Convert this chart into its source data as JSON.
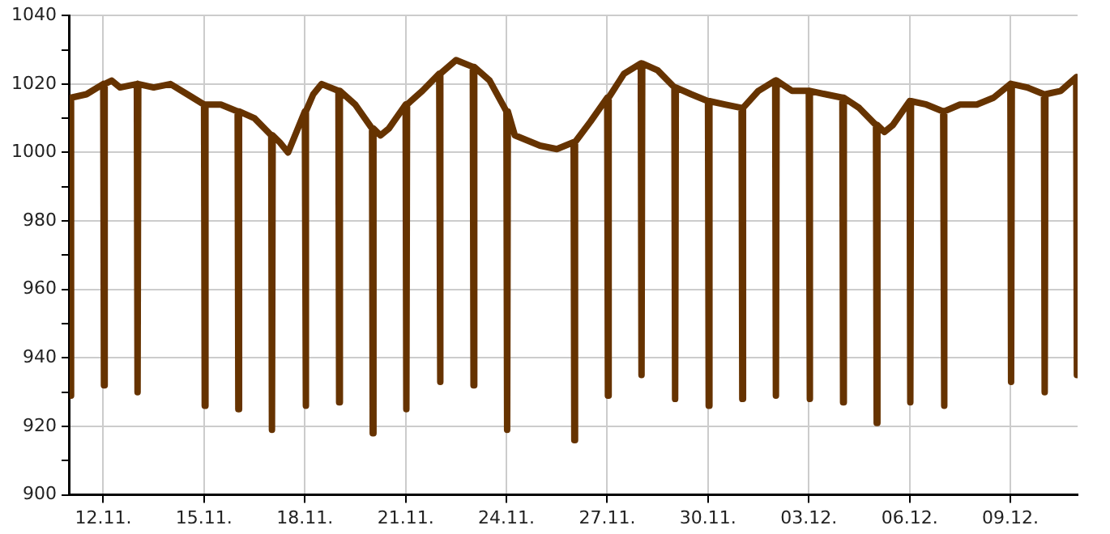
{
  "chart_data": {
    "type": "line",
    "marker": "none",
    "line_style": "solid",
    "grid": true,
    "legend": false,
    "xlim": [
      "--11-11T00:00",
      "--12-11T00:00"
    ],
    "xticks": [
      {
        "value": "--11-12",
        "label": "12.11."
      },
      {
        "value": "--11-15",
        "label": "15.11."
      },
      {
        "value": "--11-18",
        "label": "18.11."
      },
      {
        "value": "--11-21",
        "label": "21.11."
      },
      {
        "value": "--11-24",
        "label": "24.11."
      },
      {
        "value": "--11-27",
        "label": "27.11."
      },
      {
        "value": "--11-30",
        "label": "30.11."
      },
      {
        "value": "--12-03",
        "label": "03.12."
      },
      {
        "value": "--12-06",
        "label": "06.12."
      },
      {
        "value": "--12-09",
        "label": "09.12."
      }
    ],
    "ylim": [
      900,
      1040
    ],
    "yticks": [
      900,
      {
        "value": 910,
        "label": null
      },
      920,
      {
        "value": 930,
        "label": null
      },
      940,
      {
        "value": 950,
        "label": null
      },
      960,
      {
        "value": 970,
        "label": null
      },
      980,
      {
        "value": 990,
        "label": null
      },
      1000,
      {
        "value": 1010,
        "label": null
      },
      1020,
      {
        "value": 1030,
        "label": null
      },
      1040
    ],
    "series": [
      {
        "color": "#663300",
        "x": [
          "--11-11T00:00",
          "--11-11T00:30",
          "--11-11T01:00",
          "--11-11T12:00",
          "--11-12T00:00",
          "--11-12T00:30",
          "--11-12T01:00",
          "--11-12T06:00",
          "--11-12T12:00",
          "--11-13T00:00",
          "--11-13T00:30",
          "--11-13T01:00",
          "--11-13T12:00",
          "--11-14T00:00",
          "--11-14T12:00",
          "--11-15T00:00",
          "--11-15T00:30",
          "--11-15T01:00",
          "--11-15T12:00",
          "--11-16T00:00",
          "--11-16T00:30",
          "--11-16T01:00",
          "--11-16T12:00",
          "--11-17T00:00",
          "--11-17T00:30",
          "--11-17T01:00",
          "--11-17T06:00",
          "--11-17T12:00",
          "--11-18T00:00",
          "--11-18T00:30",
          "--11-18T01:00",
          "--11-18T06:00",
          "--11-18T12:00",
          "--11-19T00:00",
          "--11-19T00:30",
          "--11-19T01:00",
          "--11-19T12:00",
          "--11-20T00:00",
          "--11-20T00:30",
          "--11-20T01:00",
          "--11-20T06:00",
          "--11-20T12:00",
          "--11-21T00:00",
          "--11-21T00:30",
          "--11-21T01:00",
          "--11-21T12:00",
          "--11-22T00:00",
          "--11-22T00:30",
          "--11-22T01:00",
          "--11-22T12:00",
          "--11-23T00:00",
          "--11-23T00:30",
          "--11-23T01:00",
          "--11-23T12:00",
          "--11-24T00:00",
          "--11-24T00:30",
          "--11-24T01:00",
          "--11-24T06:00",
          "--11-24T12:00",
          "--11-25T00:00",
          "--11-25T12:00",
          "--11-26T00:00",
          "--11-26T00:30",
          "--11-26T01:00",
          "--11-26T12:00",
          "--11-27T00:00",
          "--11-27T00:30",
          "--11-27T01:00",
          "--11-27T12:00",
          "--11-28T00:00",
          "--11-28T00:30",
          "--11-28T01:00",
          "--11-28T12:00",
          "--11-29T00:00",
          "--11-29T00:30",
          "--11-29T01:00",
          "--11-29T12:00",
          "--11-30T00:00",
          "--11-30T00:30",
          "--11-30T01:00",
          "--11-30T12:00",
          "--12-01T00:00",
          "--12-01T00:30",
          "--12-01T01:00",
          "--12-01T12:00",
          "--12-02T00:00",
          "--12-02T00:30",
          "--12-02T01:00",
          "--12-02T12:00",
          "--12-03T00:00",
          "--12-03T00:30",
          "--12-03T01:00",
          "--12-03T12:00",
          "--12-04T00:00",
          "--12-04T00:30",
          "--12-04T01:00",
          "--12-04T12:00",
          "--12-05T00:00",
          "--12-05T00:30",
          "--12-05T01:00",
          "--12-05T06:00",
          "--12-05T12:00",
          "--12-06T00:00",
          "--12-06T00:30",
          "--12-06T01:00",
          "--12-06T12:00",
          "--12-07T00:00",
          "--12-07T00:30",
          "--12-07T01:00",
          "--12-07T12:00",
          "--12-08T00:00",
          "--12-08T12:00",
          "--12-09T00:00",
          "--12-09T00:30",
          "--12-09T01:00",
          "--12-09T12:00",
          "--12-10T00:00",
          "--12-10T00:30",
          "--12-10T01:00",
          "--12-10T12:00",
          "--12-10T23:00",
          "--12-10T23:30"
        ],
        "values": [
          1016,
          929,
          1016,
          1017,
          1020,
          932,
          1020,
          1021,
          1019,
          1020,
          930,
          1020,
          1019,
          1020,
          1017,
          1014,
          926,
          1014,
          1014,
          1012,
          925,
          1012,
          1010,
          1005,
          919,
          1005,
          1003,
          1000,
          1012,
          926,
          1012,
          1017,
          1020,
          1018,
          927,
          1018,
          1014,
          1007,
          918,
          1007,
          1005,
          1007,
          1014,
          925,
          1014,
          1018,
          1023,
          933,
          1023,
          1027,
          1025,
          932,
          1025,
          1021,
          1012,
          919,
          1012,
          1005,
          1004,
          1002,
          1001,
          1003,
          916,
          1003,
          1009,
          1016,
          929,
          1016,
          1023,
          1026,
          935,
          1026,
          1024,
          1019,
          928,
          1019,
          1017,
          1015,
          926,
          1015,
          1014,
          1013,
          928,
          1013,
          1018,
          1021,
          929,
          1021,
          1018,
          1018,
          928,
          1018,
          1017,
          1016,
          927,
          1016,
          1013,
          1008,
          921,
          1008,
          1006,
          1008,
          1015,
          927,
          1015,
          1014,
          1012,
          926,
          1012,
          1014,
          1014,
          1016,
          1020,
          933,
          1020,
          1019,
          1017,
          930,
          1017,
          1018,
          1022,
          935
        ]
      }
    ]
  }
}
